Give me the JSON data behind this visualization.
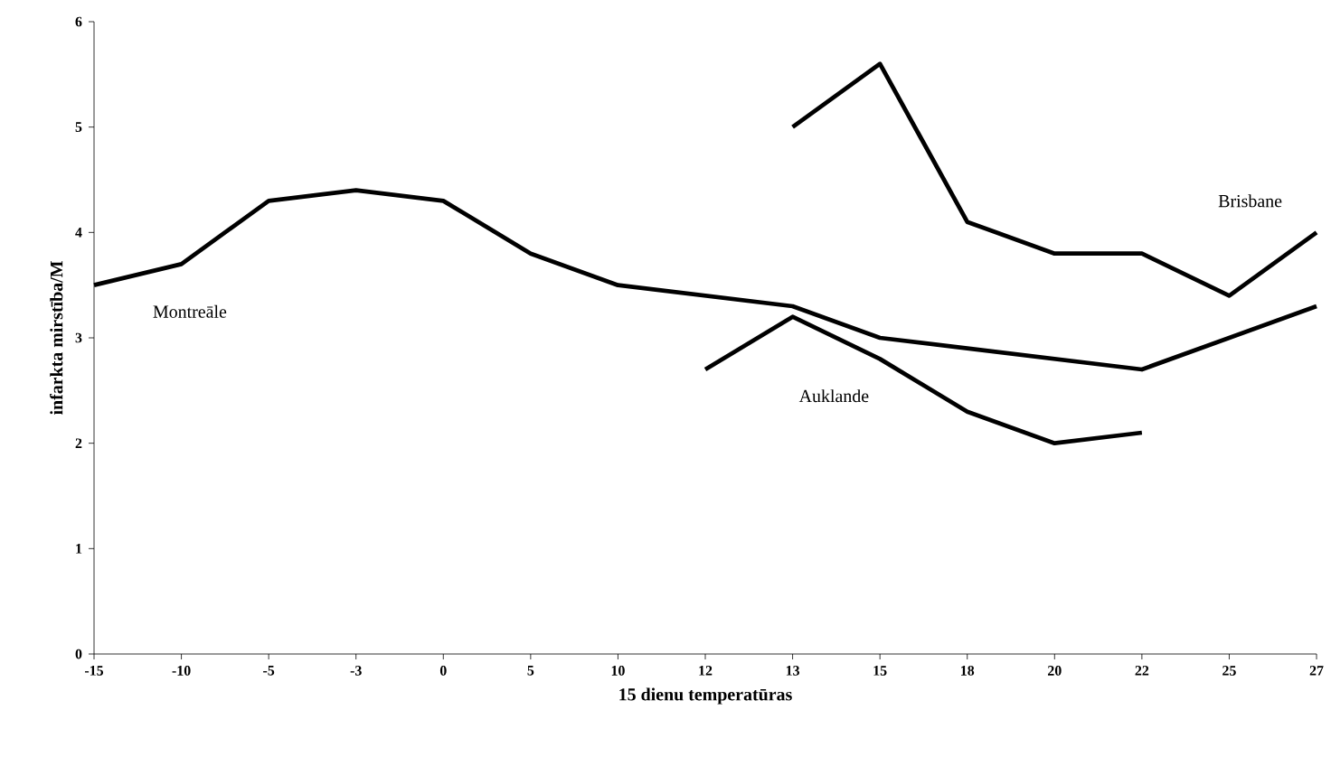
{
  "chart_data": {
    "type": "line",
    "xlabel": "15 dienu temperatūras",
    "ylabel": "infarkta mirstība/M",
    "categories": [
      "-15",
      "-10",
      "-5",
      "-3",
      "0",
      "5",
      "10",
      "12",
      "13",
      "15",
      "18",
      "20",
      "22",
      "25",
      "27"
    ],
    "ylim": [
      0,
      6
    ],
    "yticks": [
      0,
      1,
      2,
      3,
      4,
      5,
      6
    ],
    "grid": false,
    "marker": "none",
    "line_style": "solid",
    "series": [
      {
        "name": "Montreāle",
        "color": "#000000",
        "values": [
          3.5,
          3.7,
          4.3,
          4.4,
          4.3,
          3.8,
          3.5,
          3.4,
          3.3,
          3.0,
          2.9,
          2.8,
          2.7,
          3.0,
          3.3
        ]
      },
      {
        "name": "Brisbane",
        "color": "#000000",
        "values": [
          null,
          null,
          null,
          null,
          null,
          null,
          null,
          null,
          5.0,
          5.6,
          4.1,
          3.8,
          3.8,
          3.4,
          4.0
        ]
      },
      {
        "name": "Auklande",
        "color": "#000000",
        "values": [
          null,
          null,
          null,
          null,
          null,
          null,
          null,
          2.7,
          3.2,
          2.8,
          2.3,
          2.0,
          2.1,
          null,
          null
        ]
      }
    ]
  }
}
